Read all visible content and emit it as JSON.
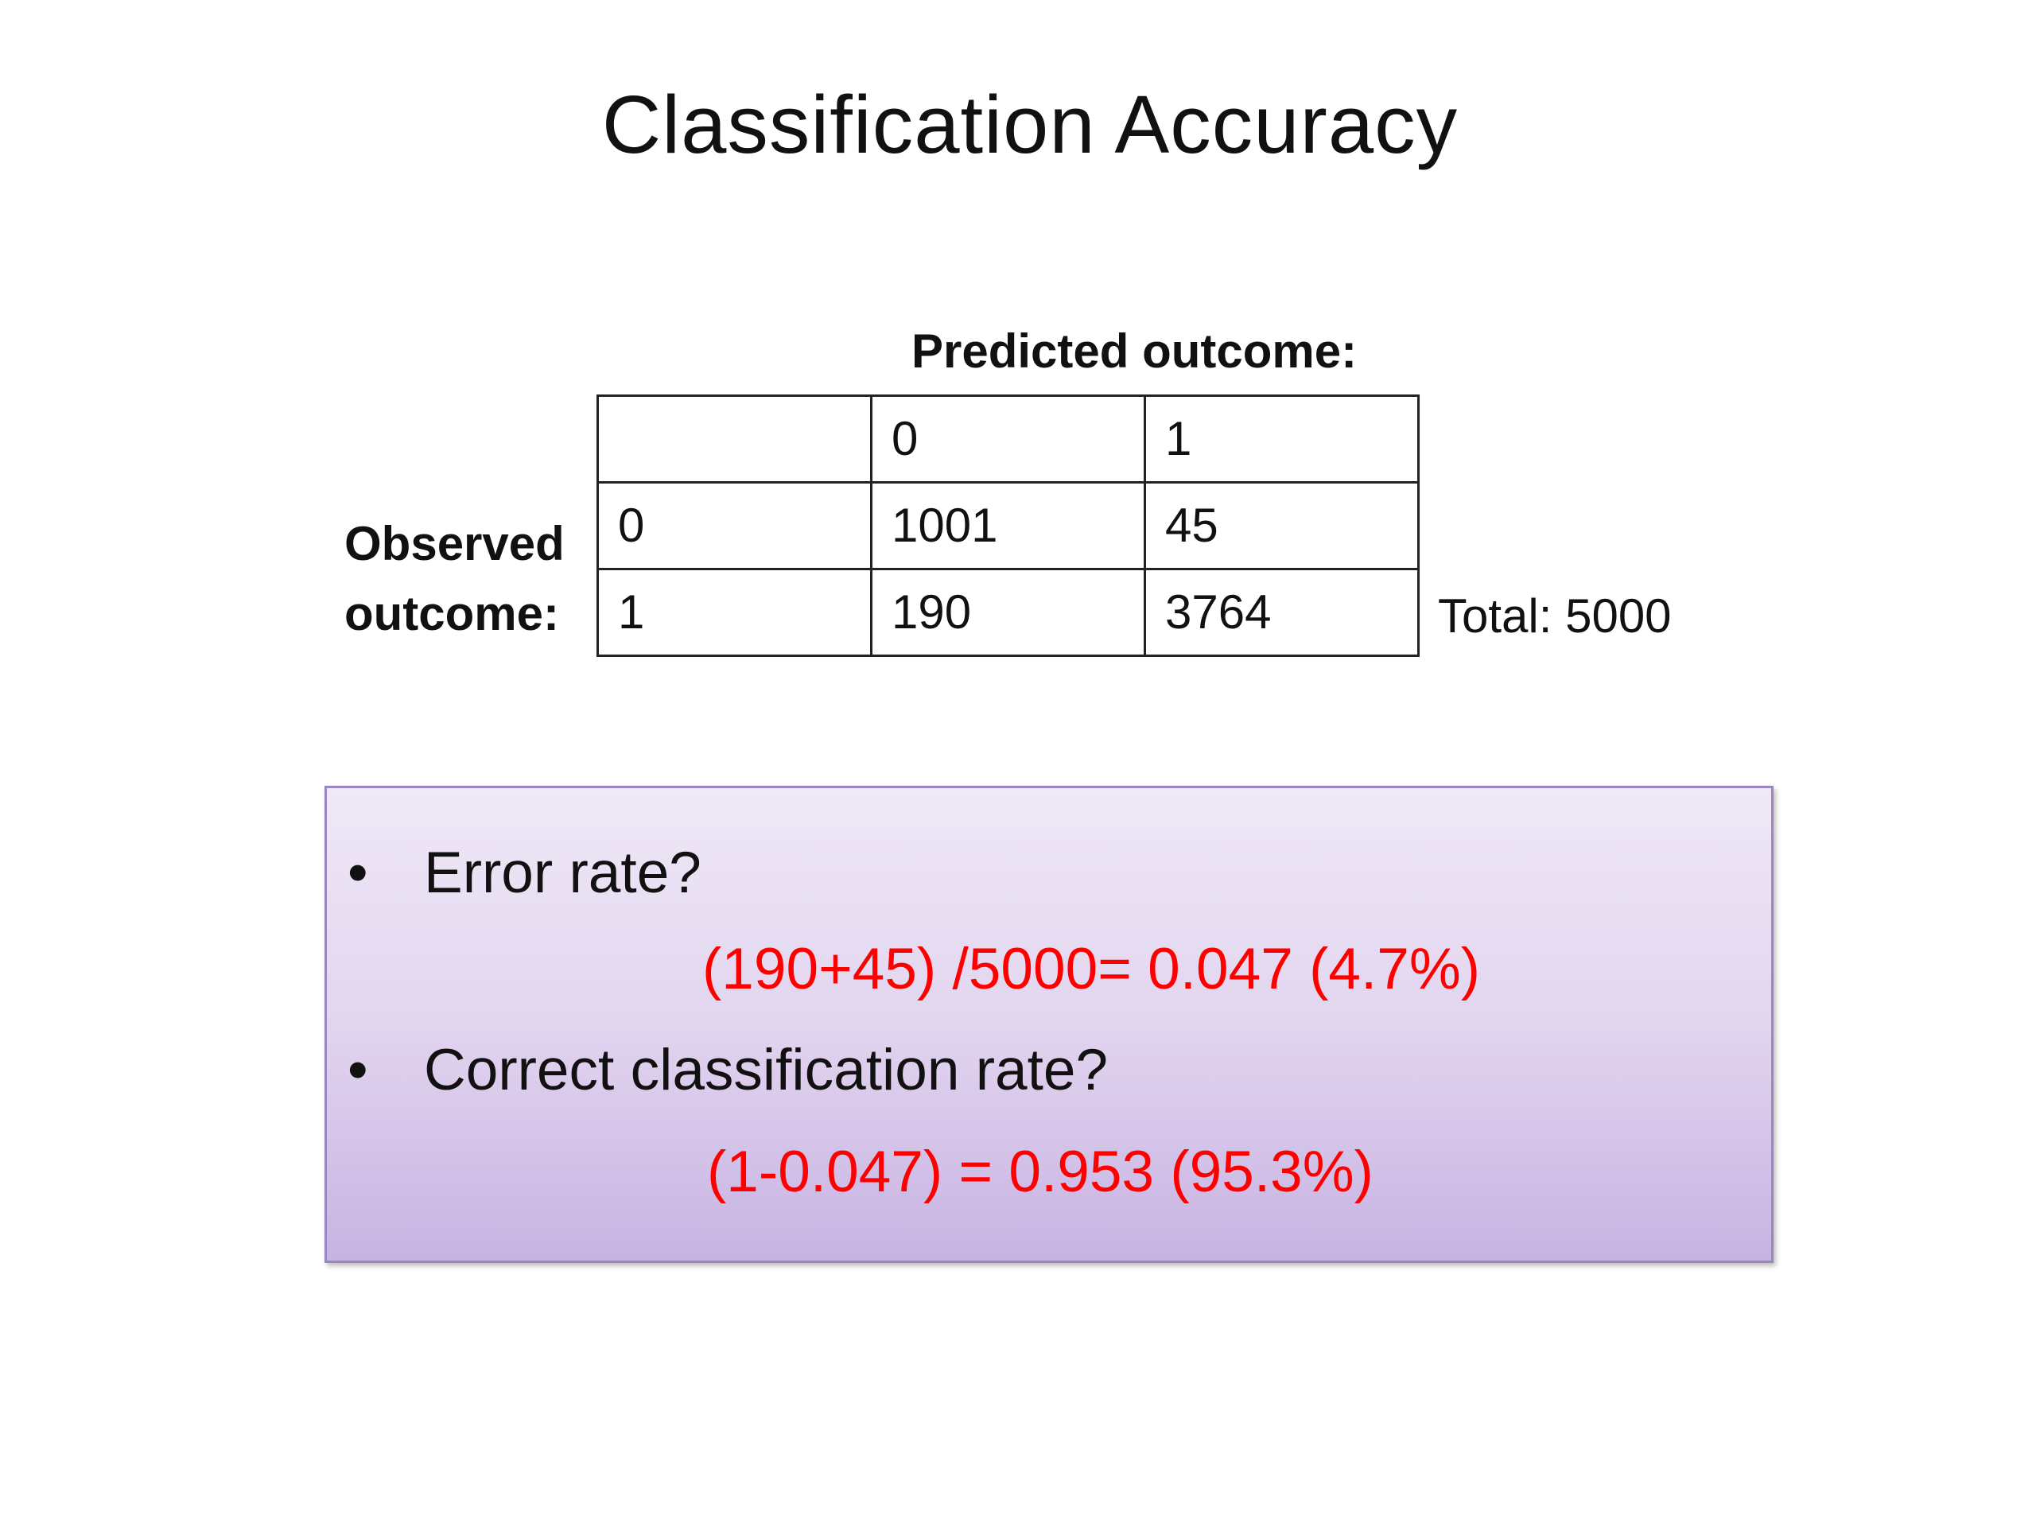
{
  "title": "Classification Accuracy",
  "matrix": {
    "predicted_label": "Predicted outcome:",
    "observed_label_line1": "Observed",
    "observed_label_line2": "outcome:",
    "header": [
      "",
      "0",
      "1"
    ],
    "rows": [
      [
        "0",
        "1001",
        "45"
      ],
      [
        "1",
        "190",
        "3764"
      ]
    ],
    "total": "Total: 5000"
  },
  "questions": {
    "bullet": "•",
    "error_rate_question": "Error rate?",
    "error_rate_answer": "(190+45) /5000= 0.047 (4.7%)",
    "correct_rate_question": "Correct classification rate?",
    "correct_rate_answer": "(1-0.047) = 0.953 (95.3%)"
  },
  "colors": {
    "answer_text": "#ff0000",
    "box_fill_top": "#efe9f7",
    "box_fill_bottom": "#c7b3e2",
    "box_border": "#9a86c0"
  }
}
